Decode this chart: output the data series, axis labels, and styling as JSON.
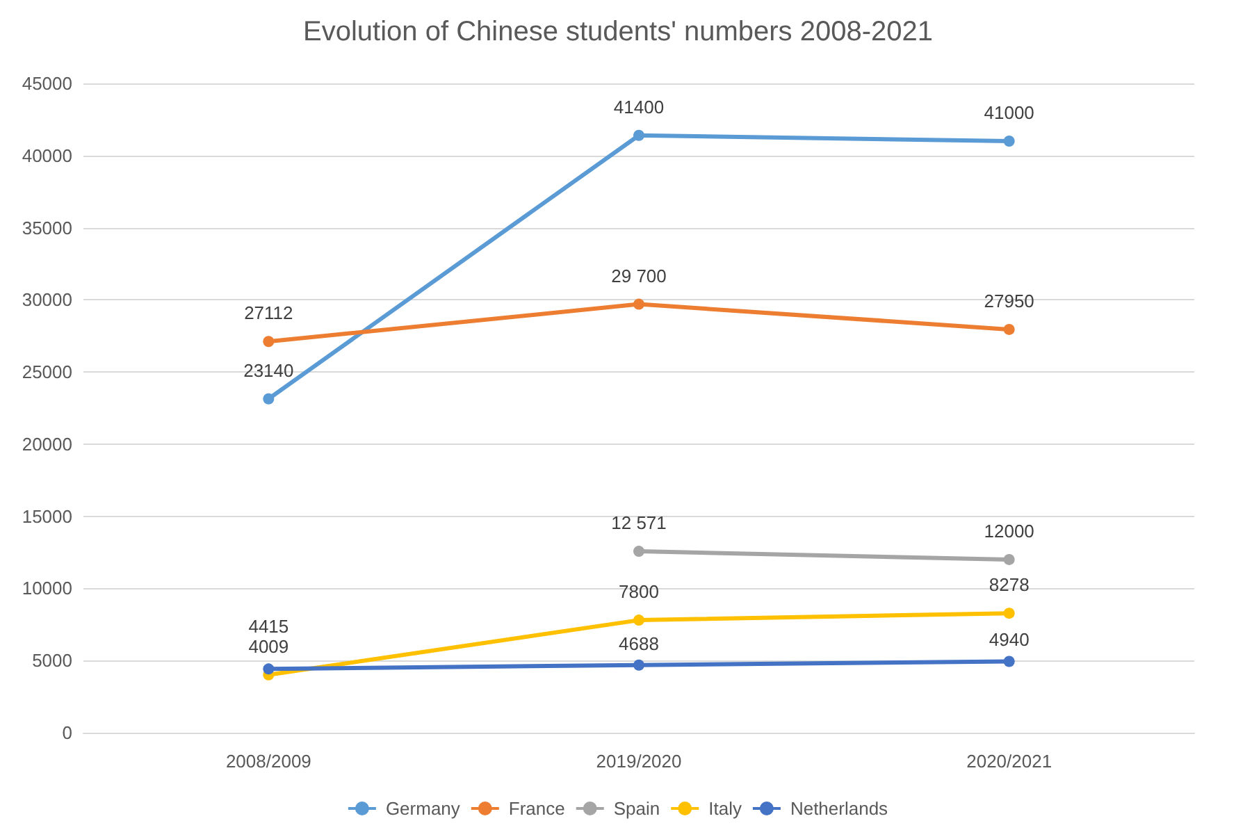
{
  "chart_data": {
    "type": "line",
    "title": "Evolution of Chinese students' numbers 2008-2021",
    "categories": [
      "2008/2009",
      "2019/2020",
      "2020/2021"
    ],
    "series": [
      {
        "name": "Germany",
        "color": "#5b9bd5",
        "values": [
          23140,
          41400,
          41000
        ],
        "value_labels": [
          "23140",
          "41400",
          "41000"
        ]
      },
      {
        "name": "France",
        "color": "#ed7d31",
        "values": [
          27112,
          29700,
          27950
        ],
        "value_labels": [
          "27112",
          "29 700",
          "27950"
        ]
      },
      {
        "name": "Spain",
        "color": "#a5a5a5",
        "values": [
          null,
          12571,
          12000
        ],
        "value_labels": [
          null,
          "12 571",
          "12000"
        ]
      },
      {
        "name": "Italy",
        "color": "#ffc000",
        "values": [
          4009,
          7800,
          8278
        ],
        "value_labels": [
          "4009",
          "7800",
          "8278"
        ]
      },
      {
        "name": "Netherlands",
        "color": "#4472c4",
        "values": [
          4415,
          4688,
          4940
        ],
        "value_labels": [
          "4415",
          "4688",
          "4940"
        ]
      }
    ],
    "ylim": [
      0,
      45000
    ],
    "yticks": [
      0,
      5000,
      10000,
      15000,
      20000,
      25000,
      30000,
      35000,
      40000,
      45000
    ],
    "grid": "y",
    "legend": "bottom",
    "marker": "circle",
    "line_style": "solid"
  }
}
